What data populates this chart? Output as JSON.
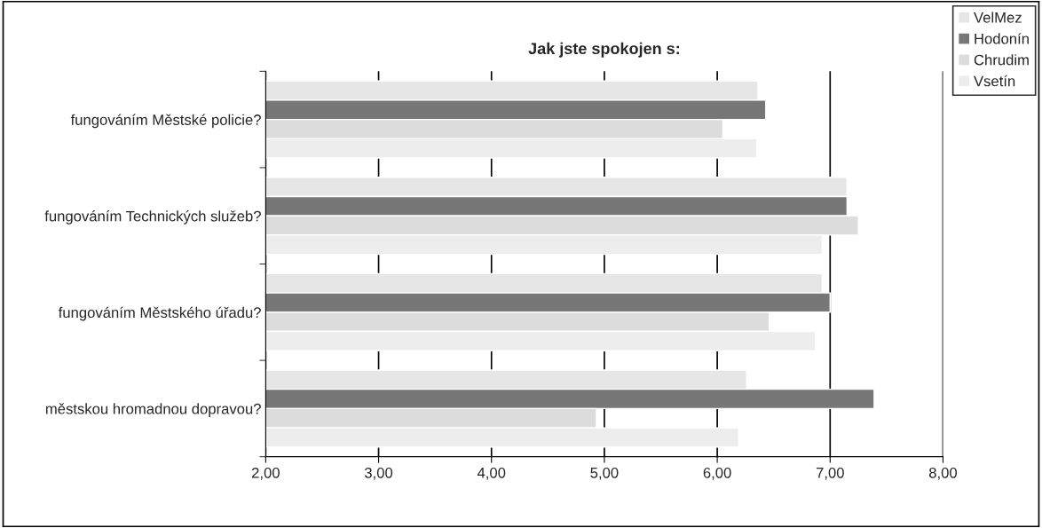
{
  "chart_data": {
    "type": "bar",
    "orientation": "horizontal",
    "title": "Jak jste spokojen s:",
    "categories": [
      "fungováním Městské policie?",
      "fungováním Technických služeb?",
      "fungováním Městského úřadu?",
      "městskou hromadnou dopravou?"
    ],
    "series": [
      {
        "name": "VelMez",
        "color": "#e6e6e6",
        "values": [
          6.36,
          7.15,
          6.93,
          6.26
        ]
      },
      {
        "name": "Hodonín",
        "color": "#777777",
        "values": [
          6.43,
          7.15,
          7.0,
          7.39
        ]
      },
      {
        "name": "Chrudim",
        "color": "#dcdcdc",
        "values": [
          6.05,
          7.25,
          6.46,
          4.93
        ]
      },
      {
        "name": "Vsetín",
        "color": "#ededed",
        "values": [
          6.35,
          6.93,
          6.87,
          6.19
        ]
      }
    ],
    "xlim": [
      2,
      8
    ],
    "xticks": [
      {
        "value": 2,
        "label": "2,00"
      },
      {
        "value": 3,
        "label": "3,00"
      },
      {
        "value": 4,
        "label": "4,00"
      },
      {
        "value": 5,
        "label": "5,00"
      },
      {
        "value": 6,
        "label": "6,00"
      },
      {
        "value": 7,
        "label": "7,00"
      },
      {
        "value": 8,
        "label": "8,00"
      }
    ],
    "grid": "x",
    "legend": "top right"
  }
}
